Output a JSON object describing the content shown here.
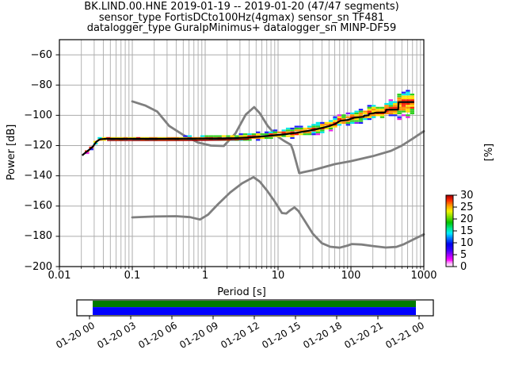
{
  "figure": {
    "title_line1": "BK.LIND.00.HNE   2019-01-19 -- 2019-01-20  (47/47 segments)",
    "title_line2": "sensor_type FortisDCto100Hz(4gmax) sensor_sn TF481",
    "title_line3": "datalogger_type GuralpMinimus+ datalogger_sn MINP-DF59"
  },
  "chart_data": {
    "type": "heatmap",
    "title": "BK.LIND.00.HNE 2019-01-19 -- 2019-01-20 (47/47 segments)",
    "subtitle1": "sensor_type FortisDCto100Hz(4gmax) sensor_sn TF481",
    "subtitle2": "datalogger_type GuralpMinimus+ datalogger_sn MINP-DF59",
    "xlabel": "Period [s]",
    "ylabel": "Power [dB]",
    "xscale": "log",
    "xlim": [
      0.01,
      1000
    ],
    "ylim": [
      -200,
      -50
    ],
    "xticks": [
      0.01,
      0.1,
      1,
      10,
      100,
      1000
    ],
    "xtick_labels": [
      "0.01",
      "0.1",
      "1",
      "10",
      "100",
      "1000"
    ],
    "yticks": [
      -60,
      -80,
      -100,
      -120,
      -140,
      -160,
      -180,
      -200
    ],
    "grid": true,
    "grid_color": "#ababab",
    "colorbar": {
      "label": "[%]",
      "ticks": [
        30,
        25,
        20,
        15,
        10,
        5,
        0
      ],
      "stops": [
        [
          0.0,
          "#ffffff"
        ],
        [
          0.05,
          "#ffb0ff"
        ],
        [
          0.1,
          "#ff00ff"
        ],
        [
          0.17,
          "#9900ff"
        ],
        [
          0.24,
          "#3300ff"
        ],
        [
          0.32,
          "#0000ee"
        ],
        [
          0.4,
          "#0077ff"
        ],
        [
          0.47,
          "#00eeff"
        ],
        [
          0.54,
          "#00e890"
        ],
        [
          0.62,
          "#00c400"
        ],
        [
          0.7,
          "#7ddd00"
        ],
        [
          0.78,
          "#f5f500"
        ],
        [
          0.86,
          "#ff9900"
        ],
        [
          0.93,
          "#ff2a00"
        ],
        [
          1.0,
          "#aa0000"
        ]
      ]
    },
    "series": [
      {
        "name": "noise-model-high-NHNM",
        "color": "#7f7f7f",
        "width": 2.8,
        "points": [
          [
            0.1,
            -90.8
          ],
          [
            0.15,
            -93.5
          ],
          [
            0.22,
            -97.5
          ],
          [
            0.32,
            -107
          ],
          [
            0.5,
            -113
          ],
          [
            0.8,
            -118
          ],
          [
            1.2,
            -120
          ],
          [
            1.8,
            -120.3
          ],
          [
            2.6,
            -112
          ],
          [
            3.6,
            -99.5
          ],
          [
            4.7,
            -94.6
          ],
          [
            5.6,
            -98.5
          ],
          [
            7.2,
            -107
          ],
          [
            9.5,
            -113.5
          ],
          [
            12,
            -116.8
          ],
          [
            15,
            -119.5
          ],
          [
            16,
            -123
          ],
          [
            19.5,
            -138.2
          ],
          [
            30,
            -136.3
          ],
          [
            60,
            -132.3
          ],
          [
            100,
            -130.3
          ],
          [
            200,
            -127
          ],
          [
            355,
            -123.5
          ],
          [
            500,
            -120
          ],
          [
            700,
            -115.5
          ],
          [
            1000,
            -110.5
          ]
        ]
      },
      {
        "name": "noise-model-low-NLNM",
        "color": "#7f7f7f",
        "width": 2.8,
        "points": [
          [
            0.1,
            -167.5
          ],
          [
            0.2,
            -166.9
          ],
          [
            0.4,
            -166.7
          ],
          [
            0.62,
            -167.3
          ],
          [
            0.85,
            -168.9
          ],
          [
            1.1,
            -165.6
          ],
          [
            1.5,
            -158.8
          ],
          [
            2.2,
            -151
          ],
          [
            3.2,
            -145
          ],
          [
            4.6,
            -140.9
          ],
          [
            5.6,
            -143.8
          ],
          [
            7,
            -149.5
          ],
          [
            9,
            -157
          ],
          [
            11.3,
            -164.6
          ],
          [
            13,
            -164.9
          ],
          [
            14.3,
            -163.2
          ],
          [
            16.8,
            -160.9
          ],
          [
            19,
            -163.2
          ],
          [
            23,
            -169.5
          ],
          [
            30,
            -178.3
          ],
          [
            40,
            -184.6
          ],
          [
            52,
            -186.9
          ],
          [
            70,
            -187.5
          ],
          [
            90,
            -186.1
          ],
          [
            103,
            -185.1
          ],
          [
            140,
            -185.4
          ],
          [
            200,
            -186.4
          ],
          [
            300,
            -187.4
          ],
          [
            420,
            -187
          ],
          [
            520,
            -185.4
          ],
          [
            700,
            -182.4
          ],
          [
            1000,
            -178.7
          ]
        ]
      },
      {
        "name": "psd-mode-line",
        "color": "#000000",
        "width": 2.2,
        "points": [
          [
            0.0205,
            -126.5
          ],
          [
            0.023,
            -124.5
          ],
          [
            0.026,
            -122.5
          ],
          [
            0.029,
            -120.5
          ],
          [
            0.032,
            -117.5
          ],
          [
            0.036,
            -115.8
          ],
          [
            0.045,
            -115.5
          ],
          [
            0.1,
            -115.5
          ],
          [
            0.3,
            -115.5
          ],
          [
            0.8,
            -115.4
          ],
          [
            1.5,
            -115.3
          ],
          [
            2.5,
            -115.1
          ],
          [
            4,
            -114.6
          ],
          [
            6,
            -114
          ],
          [
            9,
            -113.2
          ],
          [
            13,
            -112.4
          ],
          [
            18,
            -111.5
          ],
          [
            25,
            -110.4
          ],
          [
            35,
            -109
          ],
          [
            50,
            -107.2
          ],
          [
            60,
            -105.8
          ],
          [
            72,
            -103.6
          ],
          [
            90,
            -103.1
          ],
          [
            110,
            -101.6
          ],
          [
            150,
            -101
          ],
          [
            152,
            -100.2
          ],
          [
            175,
            -100
          ],
          [
            178,
            -99
          ],
          [
            205,
            -98.6
          ],
          [
            218,
            -98.3
          ],
          [
            295,
            -98.1
          ],
          [
            305,
            -96.3
          ],
          [
            445,
            -96.2
          ],
          [
            450,
            -91.3
          ],
          [
            735,
            -91.2
          ]
        ]
      }
    ],
    "histogram": {
      "description": "2D PPSD probability histogram (percent of 47 segments) scattered around the mode line",
      "period_range": [
        0.0195,
        740
      ],
      "db_bin": 1.25,
      "palette_inner_to_outer": [
        "#ff2000",
        "#ff9000",
        "#ffe000",
        "#30d020",
        "#00e8e8",
        "#2020ff",
        "#e820e8"
      ],
      "outer_alt_color": "#8820ff",
      "underline_color": "#990000",
      "band": [
        [
          0.02,
          1.0,
          1.4
        ],
        [
          0.035,
          1.6,
          1.3
        ],
        [
          0.1,
          1.7,
          1.3
        ],
        [
          0.5,
          2.0,
          1.6
        ],
        [
          1.5,
          2.6,
          2.0
        ],
        [
          4,
          3.3,
          2.6
        ],
        [
          10,
          3.9,
          3.0
        ],
        [
          25,
          4.4,
          3.4
        ],
        [
          60,
          5.0,
          3.8
        ],
        [
          120,
          5.6,
          4.3
        ],
        [
          250,
          6.5,
          4.8
        ],
        [
          420,
          8.0,
          5.2
        ],
        [
          460,
          8.6,
          11.5
        ],
        [
          740,
          8.6,
          11.5
        ]
      ]
    }
  },
  "timeline": {
    "labels": [
      "01-20 00",
      "01-20 03",
      "01-20 06",
      "01-20 09",
      "01-20 12",
      "01-20 15",
      "01-20 18",
      "01-20 21",
      "01-21 00"
    ],
    "bar_top_color": "#007a00",
    "bar_bottom_color": "#0000ff"
  }
}
